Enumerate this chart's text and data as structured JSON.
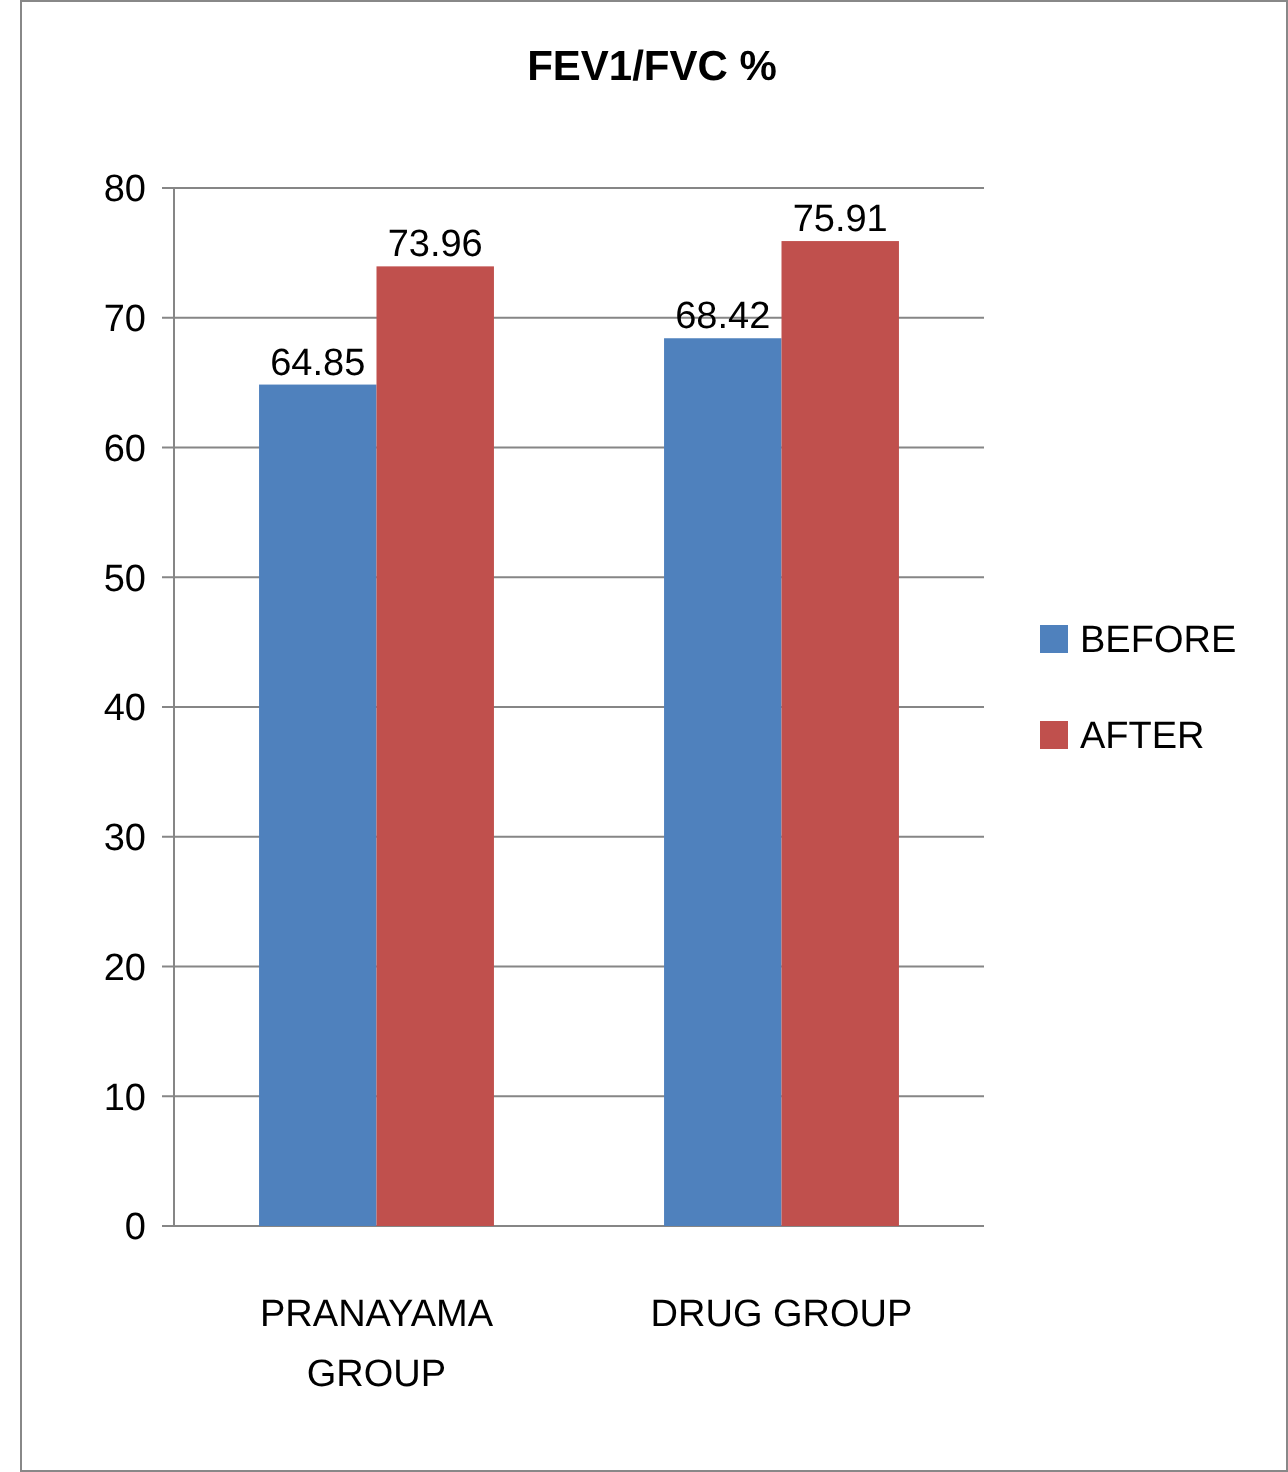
{
  "chart_data": {
    "type": "bar",
    "title": "FEV1/FVC %",
    "categories": [
      "PRANAYAMA GROUP",
      "DRUG GROUP"
    ],
    "series": [
      {
        "name": "BEFORE",
        "color": "#4f81bd",
        "values": [
          64.85,
          68.42
        ]
      },
      {
        "name": "AFTER",
        "color": "#c0504d",
        "values": [
          73.96,
          75.91
        ]
      }
    ],
    "ylim": [
      0,
      80
    ],
    "yticks": [
      0,
      10,
      20,
      30,
      40,
      50,
      60,
      70,
      80
    ],
    "grid": "y",
    "legend": "right",
    "data_labels": true
  }
}
